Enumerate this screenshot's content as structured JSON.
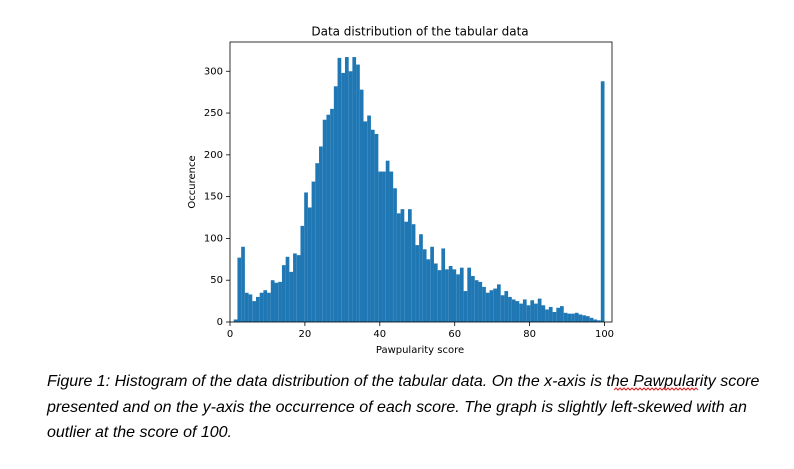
{
  "chart_data": {
    "type": "histogram",
    "title": "Data distribution of the tabular data",
    "xlabel": "Pawpularity score",
    "ylabel": "Occurence",
    "color": "#1f77b4",
    "bins": [
      1,
      1.99,
      2.98,
      3.97,
      4.96,
      5.95,
      6.94,
      7.93,
      8.92,
      9.91,
      10.9,
      11.89,
      12.88,
      13.87,
      14.86,
      15.85,
      16.84,
      17.83,
      18.82,
      19.81,
      20.8,
      21.79,
      22.78,
      23.77,
      24.76,
      25.75,
      26.74,
      27.73,
      28.72,
      29.71,
      30.7,
      31.69,
      32.68,
      33.67,
      34.66,
      35.65,
      36.64,
      37.63,
      38.62,
      39.61,
      40.6,
      41.59,
      42.58,
      43.57,
      44.56,
      45.55,
      46.54,
      47.53,
      48.52,
      49.51,
      50.5,
      51.49,
      52.48,
      53.47,
      54.46,
      55.45,
      56.44,
      57.43,
      58.42,
      59.41,
      60.4,
      61.39,
      62.38,
      63.37,
      64.36,
      65.35,
      66.34,
      67.33,
      68.32,
      69.31,
      70.3,
      71.29,
      72.28,
      73.27,
      74.26,
      75.25,
      76.24,
      77.23,
      78.22,
      79.21,
      80.2,
      81.19,
      82.18,
      83.17,
      84.16,
      85.15,
      86.14,
      87.13,
      88.12,
      89.11,
      90.1,
      91.09,
      92.08,
      93.07,
      94.06,
      95.05,
      96.04,
      97.03,
      98.02,
      99.01,
      100
    ],
    "values": [
      3,
      77,
      90,
      35,
      33,
      25,
      30,
      35,
      38,
      35,
      50,
      47,
      48,
      68,
      78,
      60,
      82,
      80,
      115,
      155,
      137,
      168,
      190,
      210,
      242,
      248,
      255,
      282,
      316,
      298,
      317,
      300,
      317,
      308,
      278,
      240,
      247,
      230,
      225,
      180,
      180,
      193,
      180,
      160,
      130,
      135,
      120,
      135,
      117,
      92,
      105,
      87,
      75,
      90,
      70,
      62,
      88,
      63,
      67,
      63,
      57,
      65,
      37,
      65,
      55,
      50,
      48,
      42,
      35,
      38,
      40,
      45,
      32,
      37,
      30,
      27,
      25,
      22,
      27,
      20,
      26,
      22,
      28,
      20,
      15,
      18,
      12,
      17,
      19,
      11,
      10,
      10,
      11,
      9,
      8,
      7,
      5,
      3,
      2,
      288
    ],
    "xlim": [
      0,
      102
    ],
    "ylim": [
      0,
      335
    ],
    "xticks": [
      0,
      20,
      40,
      60,
      80,
      100
    ],
    "yticks": [
      0,
      50,
      100,
      150,
      200,
      250,
      300
    ]
  },
  "caption": {
    "lines": [
      "Figure 1: Histogram of the data distribution of the tabular data. On the x-axis is the Pawpularity score",
      "presented and on the y-axis the occurrence of each score. The graph is slightly left-skewed with an",
      "outlier at the score of 100."
    ]
  }
}
